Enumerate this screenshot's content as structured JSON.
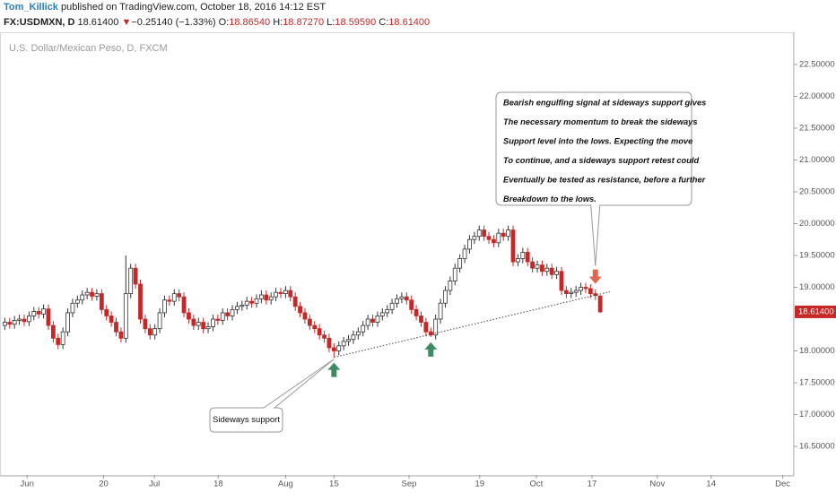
{
  "header": {
    "author": "Tom_Killick",
    "published": "published on TradingView.com, October 18, 2016 14:12 EST",
    "symbol": "FX:USDMXN, D",
    "last": "18.61400",
    "change": "−0.25140 (−1.33%)",
    "ohlc_labels": [
      "O:",
      "H:",
      "L:",
      "C:"
    ],
    "ohlc_values": [
      "18.86540",
      "18.87270",
      "18.59590",
      "18.61400"
    ]
  },
  "chart_data": {
    "type": "candlestick",
    "subtitle": "U.S. Dollar/Mexican Peso, D, FXCM",
    "up_color": "#ffffff",
    "down_color": "#c62828",
    "outline_color": "#333333",
    "open": [
      18.4,
      18.45,
      18.42,
      18.48,
      18.5,
      18.46,
      18.55,
      18.62,
      18.58,
      18.66,
      18.4,
      18.2,
      18.1,
      18.3,
      18.6,
      18.75,
      18.8,
      18.88,
      18.92,
      18.86,
      18.9,
      18.65,
      18.55,
      18.45,
      18.3,
      18.2,
      18.9,
      19.3,
      19.05,
      18.5,
      18.35,
      18.25,
      18.35,
      18.6,
      18.8,
      18.78,
      18.9,
      18.85,
      18.6,
      18.5,
      18.4,
      18.45,
      18.35,
      18.38,
      18.5,
      18.48,
      18.6,
      18.55,
      18.65,
      18.7,
      18.72,
      18.78,
      18.75,
      18.82,
      18.88,
      18.8,
      18.85,
      18.92,
      18.9,
      18.95,
      18.85,
      18.7,
      18.6,
      18.5,
      18.4,
      18.35,
      18.25,
      18.2,
      18.05,
      18.0,
      18.08,
      18.15,
      18.18,
      18.25,
      18.3,
      18.4,
      18.5,
      18.45,
      18.55,
      18.6,
      18.65,
      18.75,
      18.82,
      18.85,
      18.8,
      18.65,
      18.55,
      18.45,
      18.3,
      18.25,
      18.5,
      18.75,
      18.95,
      19.1,
      19.3,
      19.45,
      19.6,
      19.75,
      19.8,
      19.9,
      19.8,
      19.75,
      19.7,
      19.85,
      19.8,
      19.9,
      19.4,
      19.45,
      19.55,
      19.4,
      19.3,
      19.35,
      19.25,
      19.3,
      19.2,
      19.25,
      18.95,
      18.9,
      18.92,
      18.95,
      19.0,
      18.98,
      18.9,
      18.8654
    ],
    "high": [
      18.52,
      18.52,
      18.55,
      18.57,
      18.57,
      18.62,
      18.69,
      18.69,
      18.73,
      18.73,
      18.47,
      18.27,
      18.37,
      18.67,
      18.82,
      18.87,
      18.95,
      18.99,
      18.99,
      18.97,
      18.97,
      18.72,
      18.62,
      18.52,
      18.37,
      19.5,
      19.37,
      19.37,
      19.12,
      18.57,
      18.42,
      18.42,
      18.67,
      18.87,
      18.87,
      18.97,
      18.97,
      18.92,
      18.67,
      18.57,
      18.52,
      18.52,
      18.45,
      18.57,
      18.57,
      18.67,
      18.67,
      18.72,
      18.77,
      18.79,
      18.85,
      18.85,
      18.89,
      18.95,
      18.95,
      18.92,
      18.99,
      18.99,
      19.02,
      19.02,
      18.92,
      18.77,
      18.67,
      18.57,
      18.47,
      18.42,
      18.32,
      18.27,
      18.12,
      18.15,
      18.22,
      18.25,
      18.32,
      18.37,
      18.47,
      18.57,
      18.57,
      18.62,
      18.67,
      18.72,
      18.82,
      18.89,
      18.92,
      18.92,
      18.87,
      18.72,
      18.62,
      18.52,
      18.37,
      18.57,
      18.82,
      19.02,
      19.17,
      19.37,
      19.52,
      19.67,
      19.82,
      19.87,
      19.97,
      19.97,
      19.87,
      19.82,
      19.92,
      19.92,
      19.97,
      19.97,
      19.52,
      19.62,
      19.62,
      19.47,
      19.42,
      19.42,
      19.37,
      19.37,
      19.32,
      19.32,
      19.02,
      18.99,
      19.02,
      19.07,
      19.07,
      19.05,
      18.97,
      18.8727
    ],
    "low": [
      18.33,
      18.35,
      18.35,
      18.41,
      18.39,
      18.39,
      18.48,
      18.51,
      18.51,
      18.33,
      18.13,
      18.03,
      18.03,
      18.23,
      18.53,
      18.68,
      18.73,
      18.81,
      18.79,
      18.79,
      18.58,
      18.48,
      18.38,
      18.23,
      18.13,
      18.13,
      18.83,
      18.98,
      18.43,
      18.28,
      18.18,
      18.18,
      18.28,
      18.53,
      18.71,
      18.71,
      18.78,
      18.53,
      18.43,
      18.33,
      18.33,
      18.28,
      18.28,
      18.31,
      18.41,
      18.41,
      18.48,
      18.48,
      18.58,
      18.63,
      18.65,
      18.68,
      18.68,
      18.75,
      18.73,
      18.73,
      18.78,
      18.83,
      18.83,
      18.78,
      18.63,
      18.53,
      18.43,
      18.33,
      18.28,
      18.18,
      18.13,
      17.98,
      17.9,
      17.93,
      18.01,
      18.08,
      18.11,
      18.18,
      18.23,
      18.33,
      18.38,
      18.38,
      18.48,
      18.53,
      18.58,
      18.68,
      18.75,
      18.73,
      18.58,
      18.48,
      18.38,
      18.23,
      18.22,
      18.18,
      18.43,
      18.68,
      18.88,
      19.03,
      19.23,
      19.38,
      19.53,
      19.68,
      19.73,
      19.73,
      19.68,
      19.63,
      19.63,
      19.73,
      19.73,
      19.33,
      19.33,
      19.38,
      19.33,
      19.23,
      19.23,
      19.18,
      19.18,
      19.13,
      19.13,
      18.88,
      18.83,
      18.83,
      18.85,
      18.88,
      18.91,
      18.83,
      18.8,
      18.5959
    ],
    "close": [
      18.45,
      18.42,
      18.48,
      18.5,
      18.46,
      18.55,
      18.62,
      18.58,
      18.66,
      18.4,
      18.2,
      18.1,
      18.3,
      18.6,
      18.75,
      18.8,
      18.88,
      18.92,
      18.86,
      18.9,
      18.65,
      18.55,
      18.45,
      18.3,
      18.2,
      18.9,
      19.3,
      19.05,
      18.5,
      18.35,
      18.25,
      18.35,
      18.6,
      18.8,
      18.78,
      18.9,
      18.85,
      18.6,
      18.5,
      18.4,
      18.45,
      18.35,
      18.38,
      18.5,
      18.48,
      18.6,
      18.55,
      18.65,
      18.7,
      18.72,
      18.78,
      18.75,
      18.82,
      18.88,
      18.8,
      18.85,
      18.92,
      18.9,
      18.95,
      18.85,
      18.7,
      18.6,
      18.5,
      18.4,
      18.35,
      18.25,
      18.2,
      18.05,
      18.0,
      18.08,
      18.15,
      18.18,
      18.25,
      18.3,
      18.4,
      18.5,
      18.45,
      18.55,
      18.6,
      18.65,
      18.75,
      18.82,
      18.85,
      18.8,
      18.65,
      18.55,
      18.45,
      18.3,
      18.25,
      18.5,
      18.75,
      18.95,
      19.1,
      19.3,
      19.45,
      19.6,
      19.75,
      19.8,
      19.9,
      19.8,
      19.75,
      19.7,
      19.85,
      19.8,
      19.9,
      19.4,
      19.45,
      19.55,
      19.4,
      19.3,
      19.35,
      19.25,
      19.3,
      19.2,
      19.25,
      18.95,
      18.9,
      18.92,
      18.95,
      19.0,
      18.98,
      18.9,
      18.87,
      18.614
    ],
    "xlim": [
      -1,
      163
    ],
    "xticks": [
      {
        "value": 4.6,
        "label": "Jun"
      },
      {
        "value": 20.4,
        "label": "20"
      },
      {
        "value": 30.9,
        "label": "Jul"
      },
      {
        "value": 44.1,
        "label": "18"
      },
      {
        "value": 58,
        "label": "Aug"
      },
      {
        "value": 68,
        "label": "15"
      },
      {
        "value": 83.5,
        "label": "Sep"
      },
      {
        "value": 98.1,
        "label": "19"
      },
      {
        "value": 109.8,
        "label": "Oct"
      },
      {
        "value": 121.3,
        "label": "17"
      },
      {
        "value": 134.8,
        "label": "Nov"
      },
      {
        "value": 145.9,
        "label": "14"
      },
      {
        "value": 160.7,
        "label": "Dec"
      }
    ],
    "ylim": [
      16.05,
      22.95
    ],
    "yticks": [
      {
        "value": 16.5,
        "label": "16.50000"
      },
      {
        "value": 17,
        "label": "17.00000"
      },
      {
        "value": 17.5,
        "label": "17.50000"
      },
      {
        "value": 18,
        "label": "18.00000"
      },
      {
        "value": 19,
        "label": "19.00000"
      },
      {
        "value": 19.5,
        "label": "19.50000"
      },
      {
        "value": 20,
        "label": "20.00000"
      },
      {
        "value": 20.5,
        "label": "20.50000"
      },
      {
        "value": 21,
        "label": "21.00000"
      },
      {
        "value": 21.5,
        "label": "21.50000"
      },
      {
        "value": 22,
        "label": "22.00000"
      },
      {
        "value": 22.5,
        "label": "22.50000"
      }
    ],
    "last_price": {
      "value": 18.614,
      "label": "18.61400"
    },
    "trendline": {
      "x": [
        68,
        125
      ],
      "y": [
        17.9,
        18.93
      ]
    },
    "signals": [
      {
        "direction": "up",
        "x": 68,
        "color": "#3d8b63"
      },
      {
        "direction": "up",
        "x": 88,
        "color": "#3d8b63"
      },
      {
        "direction": "down",
        "x": 122,
        "color": "#e0674f"
      }
    ],
    "annotations": {
      "callout": [
        "Bearish engulfing signal at sideways support gives",
        "The necessary momentum to break the sideways",
        "Support level into the lows. Expecting the move",
        "To continue, and a sideways support retest could",
        "Eventually be tested as resistance, before a further",
        "Breakdown to the lows."
      ],
      "support_label": "Sideways support"
    }
  }
}
